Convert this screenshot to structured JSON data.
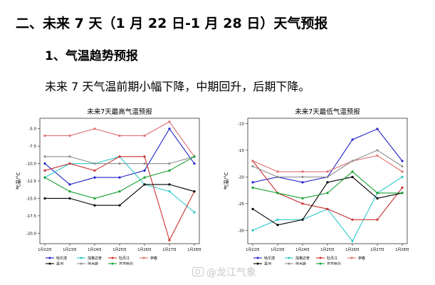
{
  "heading": "二、未来 7 天（1 月 22 日-1 月 28 日）天气预报",
  "subheading": "1、气温趋势预报",
  "paragraph": "未来 7 天气温前期小幅下降，中期回升，后期下降。",
  "watermark": "@龙江气象",
  "chart_data": [
    {
      "type": "line",
      "title": "未来7天最高气温预报",
      "ylabel": "气温/°C",
      "xlabel": "",
      "x": [
        "1月22日",
        "1月23日",
        "1月24日",
        "1月25日",
        "1月26日",
        "1月27日",
        "1月28日"
      ],
      "ylim": [
        -21.5,
        -3.5
      ],
      "yticks": [
        -5.0,
        -7.5,
        -10.0,
        -12.5,
        -15.0,
        -17.5,
        -20.0
      ],
      "ytick_labels": [
        "-5.0",
        "-7.5",
        "-10.0",
        "-12.5",
        "-15.0",
        "-17.5",
        "-20.0"
      ],
      "legend_position": "bottom",
      "series": [
        {
          "name": "哈尔滨",
          "color": "#2020c8",
          "values": [
            -10,
            -13,
            -12,
            -12,
            -11,
            -5,
            -10
          ]
        },
        {
          "name": "加格达奇",
          "color": "#30c8c8",
          "values": [
            -12,
            -10,
            -10,
            -9,
            -13,
            -14,
            -17
          ]
        },
        {
          "name": "牡丹江",
          "color": "#c83232",
          "values": [
            -11,
            -10,
            -11,
            -9,
            -9,
            -21,
            -14
          ]
        },
        {
          "name": "伊春",
          "color": "#e07070",
          "values": [
            -6,
            -6,
            -5,
            -6,
            -6,
            -4,
            -9
          ]
        },
        {
          "name": "黑河",
          "color": "#000000",
          "values": [
            -15,
            -15,
            -16,
            -16,
            -13,
            -13,
            -14
          ]
        },
        {
          "name": "佳木斯",
          "color": "#909090",
          "values": [
            -9,
            -9,
            -10,
            -10,
            -10,
            -10,
            -9
          ]
        },
        {
          "name": "齐齐哈尔",
          "color": "#18a030",
          "values": [
            -12,
            -14,
            -15,
            -14,
            -12,
            -11,
            -9
          ]
        }
      ]
    },
    {
      "type": "line",
      "title": "未来7天最低气温预报",
      "ylabel": "气温/°C",
      "xlabel": "",
      "x": [
        "1月22日",
        "1月23日",
        "1月24日",
        "1月25日",
        "1月26日",
        "1月27日",
        "1月28日"
      ],
      "ylim": [
        -32.5,
        -9
      ],
      "yticks": [
        -10,
        -15,
        -20,
        -25,
        -30
      ],
      "ytick_labels": [
        "-10",
        "-15",
        "-20",
        "-25",
        "-30"
      ],
      "legend_position": "bottom",
      "series": [
        {
          "name": "哈尔滨",
          "color": "#2020c8",
          "values": [
            -21,
            -20,
            -21,
            -20,
            -13,
            -11,
            -17
          ]
        },
        {
          "name": "加格达奇",
          "color": "#30c8c8",
          "values": [
            -30,
            -28,
            -28,
            -26,
            -32,
            -23,
            -20
          ]
        },
        {
          "name": "牡丹江",
          "color": "#c83232",
          "values": [
            -17,
            -23,
            -25,
            -26,
            -28,
            -28,
            -22
          ]
        },
        {
          "name": "伊春",
          "color": "#e07070",
          "values": [
            -17,
            -19,
            -19,
            -19,
            -17,
            -16,
            -19
          ]
        },
        {
          "name": "黑河",
          "color": "#000000",
          "values": [
            -26,
            -29,
            -28,
            -21,
            -20,
            -24,
            -23
          ]
        },
        {
          "name": "佳木斯",
          "color": "#909090",
          "values": [
            -18,
            -20,
            -20,
            -20,
            -17,
            -15,
            -18
          ]
        },
        {
          "name": "齐齐哈尔",
          "color": "#18a030",
          "values": [
            -22,
            -23,
            -24,
            -23,
            -19,
            -23,
            -23
          ]
        }
      ]
    }
  ]
}
